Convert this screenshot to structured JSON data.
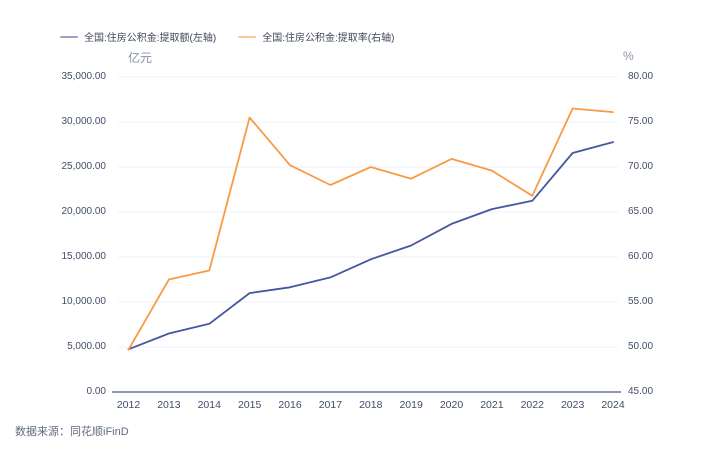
{
  "legend": {
    "items": [
      {
        "label": "全国:住房公积金:提取额(左轴)",
        "color": "#45579E"
      },
      {
        "label": "全国:住房公积金:提取率(右轴)",
        "color": "#F89B45"
      }
    ]
  },
  "axis_units": {
    "left": "亿元",
    "right": "%"
  },
  "footer": {
    "source": "数据来源：同花顺iFinD"
  },
  "colors": {
    "amount_line": "#45579E",
    "rate_line": "#F89B45",
    "gridline": "#EEF0F7",
    "axis_line": "#4E5C85",
    "tick_text": "#414D68",
    "unit_text": "#8A92A5",
    "source_text": "#626C7E",
    "background": "#FFFFFF"
  },
  "chart_data": {
    "type": "line",
    "title": "",
    "categories": [
      "2012",
      "2013",
      "2014",
      "2015",
      "2016",
      "2017",
      "2018",
      "2019",
      "2020",
      "2021",
      "2022",
      "2023",
      "2024"
    ],
    "series": [
      {
        "name": "全国:住房公积金:提取额(左轴)",
        "axis": "left",
        "color": "#45579E",
        "values": [
          4750,
          6500,
          7580,
          10990,
          11630,
          12730,
          14740,
          16280,
          18680,
          20320,
          21250,
          26560,
          27770
        ]
      },
      {
        "name": "全国:住房公积金:提取率(右轴)",
        "axis": "right",
        "color": "#F89B45",
        "values": [
          49.7,
          57.5,
          58.5,
          75.5,
          70.2,
          68.0,
          70.0,
          68.7,
          70.9,
          69.6,
          66.8,
          76.5,
          76.1
        ]
      }
    ],
    "left_axis": {
      "unit": "亿元",
      "min": 0,
      "max": 35000,
      "tick_step": 5000,
      "ticks": [
        "0.00",
        "5,000.00",
        "10,000.00",
        "15,000.00",
        "20,000.00",
        "25,000.00",
        "30,000.00",
        "35,000.00"
      ]
    },
    "right_axis": {
      "unit": "%",
      "min": 45,
      "max": 80,
      "tick_step": 5,
      "ticks": [
        "45.00",
        "50.00",
        "55.00",
        "60.00",
        "65.00",
        "70.00",
        "75.00",
        "80.00"
      ]
    },
    "grid": true,
    "legend_position": "top-left"
  }
}
